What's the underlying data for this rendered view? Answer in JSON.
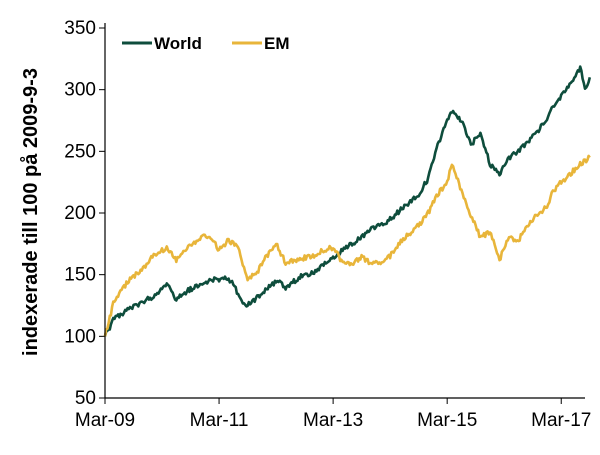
{
  "chart_data": {
    "type": "line",
    "title": "",
    "xlabel": "",
    "ylabel": "indexerade till 100 på 2009-9-3",
    "ylim": [
      50,
      350
    ],
    "yticks": [
      50,
      100,
      150,
      200,
      250,
      300,
      350
    ],
    "xlim": [
      "2009-03",
      "2017-08"
    ],
    "xtick_labels": [
      "Mar-09",
      "Mar-11",
      "Mar-13",
      "Mar-15",
      "Mar-17"
    ],
    "xtick_dates": [
      "2009-03",
      "2011-03",
      "2013-03",
      "2015-03",
      "2017-03"
    ],
    "legend": "top-left",
    "grid": false,
    "series": [
      {
        "name": "World",
        "color": "#0e4d3c",
        "points": [
          [
            "2009-03",
            100
          ],
          [
            "2009-05",
            115
          ],
          [
            "2009-08",
            122
          ],
          [
            "2009-11",
            128
          ],
          [
            "2010-01",
            132
          ],
          [
            "2010-04",
            143
          ],
          [
            "2010-06",
            130
          ],
          [
            "2010-08",
            136
          ],
          [
            "2010-11",
            142
          ],
          [
            "2011-01",
            145
          ],
          [
            "2011-04",
            147
          ],
          [
            "2011-06",
            143
          ],
          [
            "2011-08",
            125
          ],
          [
            "2011-10",
            128
          ],
          [
            "2012-01",
            138
          ],
          [
            "2012-03",
            145
          ],
          [
            "2012-05",
            140
          ],
          [
            "2012-08",
            148
          ],
          [
            "2012-11",
            152
          ],
          [
            "2013-01",
            158
          ],
          [
            "2013-05",
            170
          ],
          [
            "2013-07",
            175
          ],
          [
            "2013-09",
            180
          ],
          [
            "2013-11",
            188
          ],
          [
            "2014-01",
            190
          ],
          [
            "2014-03",
            195
          ],
          [
            "2014-06",
            205
          ],
          [
            "2014-09",
            215
          ],
          [
            "2014-11",
            228
          ],
          [
            "2015-01",
            255
          ],
          [
            "2015-03",
            275
          ],
          [
            "2015-04",
            282
          ],
          [
            "2015-06",
            275
          ],
          [
            "2015-08",
            255
          ],
          [
            "2015-10",
            265
          ],
          [
            "2015-12",
            240
          ],
          [
            "2016-02",
            232
          ],
          [
            "2016-04",
            245
          ],
          [
            "2016-06",
            250
          ],
          [
            "2016-09",
            262
          ],
          [
            "2016-12",
            275
          ],
          [
            "2017-01",
            285
          ],
          [
            "2017-03",
            295
          ],
          [
            "2017-05",
            305
          ],
          [
            "2017-06",
            312
          ],
          [
            "2017-07",
            318
          ],
          [
            "2017-08",
            300
          ],
          [
            "2017-09",
            310
          ]
        ]
      },
      {
        "name": "EM",
        "color": "#e8b53a",
        "points": [
          [
            "2009-03",
            100
          ],
          [
            "2009-05",
            130
          ],
          [
            "2009-08",
            145
          ],
          [
            "2009-11",
            155
          ],
          [
            "2010-01",
            165
          ],
          [
            "2010-04",
            172
          ],
          [
            "2010-06",
            162
          ],
          [
            "2010-08",
            170
          ],
          [
            "2010-11",
            180
          ],
          [
            "2011-01",
            182
          ],
          [
            "2011-03",
            170
          ],
          [
            "2011-05",
            178
          ],
          [
            "2011-07",
            172
          ],
          [
            "2011-09",
            145
          ],
          [
            "2011-11",
            152
          ],
          [
            "2012-01",
            165
          ],
          [
            "2012-03",
            175
          ],
          [
            "2012-05",
            160
          ],
          [
            "2012-08",
            163
          ],
          [
            "2012-11",
            165
          ],
          [
            "2013-01",
            170
          ],
          [
            "2013-03",
            172
          ],
          [
            "2013-05",
            160
          ],
          [
            "2013-07",
            158
          ],
          [
            "2013-09",
            165
          ],
          [
            "2013-11",
            158
          ],
          [
            "2014-01",
            160
          ],
          [
            "2014-03",
            165
          ],
          [
            "2014-06",
            180
          ],
          [
            "2014-09",
            190
          ],
          [
            "2014-11",
            200
          ],
          [
            "2015-01",
            215
          ],
          [
            "2015-03",
            225
          ],
          [
            "2015-04",
            240
          ],
          [
            "2015-06",
            218
          ],
          [
            "2015-08",
            198
          ],
          [
            "2015-10",
            180
          ],
          [
            "2015-12",
            185
          ],
          [
            "2016-02",
            162
          ],
          [
            "2016-04",
            180
          ],
          [
            "2016-06",
            178
          ],
          [
            "2016-09",
            195
          ],
          [
            "2016-12",
            205
          ],
          [
            "2017-01",
            215
          ],
          [
            "2017-03",
            225
          ],
          [
            "2017-05",
            232
          ],
          [
            "2017-07",
            240
          ],
          [
            "2017-09",
            245
          ]
        ]
      }
    ]
  }
}
